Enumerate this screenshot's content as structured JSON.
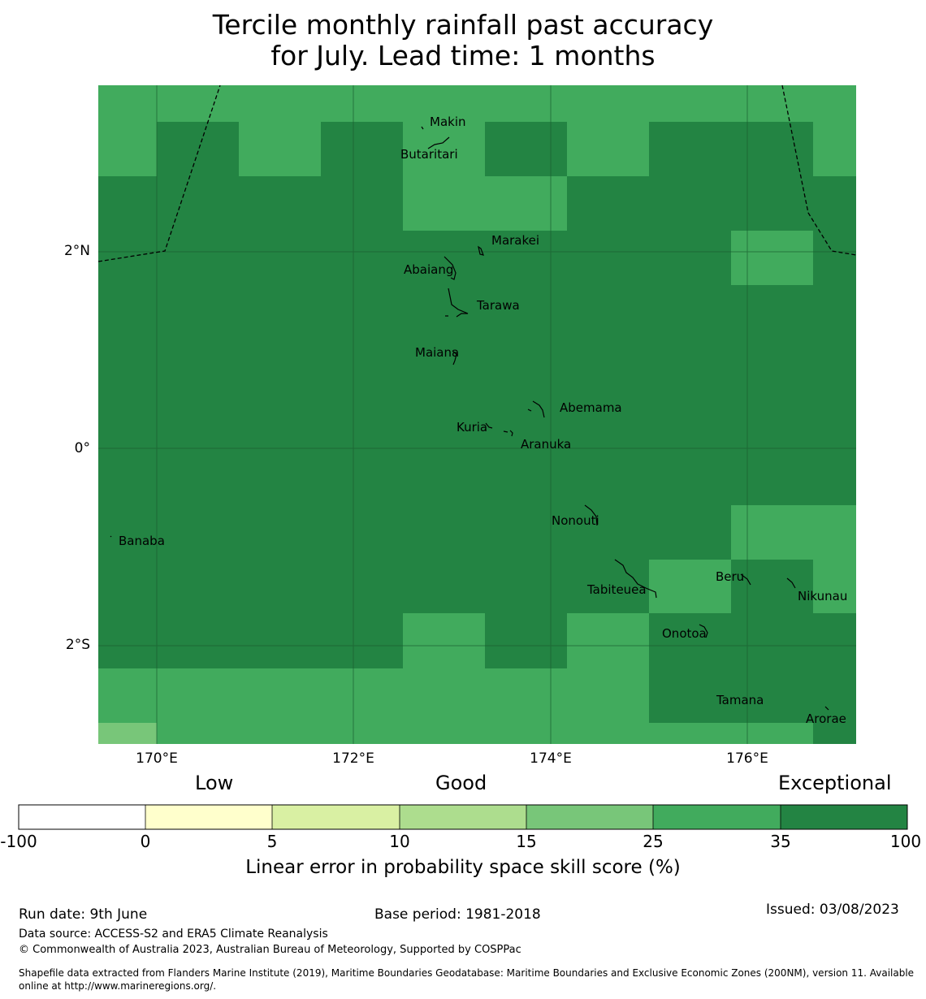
{
  "title": {
    "line1": "Tercile monthly rainfall past accuracy",
    "line2": "for July. Lead time: 1 months"
  },
  "map": {
    "axes": {
      "x_ticks": [
        "170°E",
        "172°E",
        "174°E",
        "176°E"
      ],
      "y_ticks": [
        "2°N",
        "0°",
        "2°S"
      ]
    },
    "islands": [
      {
        "name": "Makin"
      },
      {
        "name": "Butaritari"
      },
      {
        "name": "Marakei"
      },
      {
        "name": "Abaiang"
      },
      {
        "name": "Tarawa"
      },
      {
        "name": "Maiana"
      },
      {
        "name": "Abemama"
      },
      {
        "name": "Kuria"
      },
      {
        "name": "Aranuka"
      },
      {
        "name": "Banaba"
      },
      {
        "name": "Nonouti"
      },
      {
        "name": "Tabiteuea"
      },
      {
        "name": "Beru"
      },
      {
        "name": "Nikunau"
      },
      {
        "name": "Onotoa"
      },
      {
        "name": "Tamana"
      },
      {
        "name": "Arorae"
      }
    ],
    "colors": {
      "class_25_35": "#41ab5d",
      "class_35_100": "#238443",
      "class_15_25": "#78c679"
    }
  },
  "colorbar": {
    "category_labels": {
      "low": "Low",
      "good": "Good",
      "exceptional": "Exceptional"
    },
    "ticks": [
      "-100",
      "0",
      "5",
      "10",
      "15",
      "25",
      "35",
      "100"
    ],
    "colors": [
      "#ffffff",
      "#ffffcc",
      "#d9f0a3",
      "#addd8e",
      "#78c679",
      "#41ab5d",
      "#238443"
    ],
    "label": "Linear error in probability space skill score (%)"
  },
  "footer": {
    "run_date": "Run date: 9th June",
    "base_period": "Base period: 1981-2018",
    "issued": "Issued: 03/08/2023",
    "data_source": "Data source: ACCESS-S2 and ERA5 Climate Reanalysis",
    "copyright": "© Commonwealth of Australia 2023, Australian Bureau of Meteorology, Supported by COSPPac",
    "shapefile_line1": "Shapefile data extracted from Flanders Marine Institute (2019), Maritime Boundaries Geodatabase: Maritime Boundaries and Exclusive Economic Zones (200NM), version 11. Available",
    "shapefile_line2": "online at http://www.marineregions.org/."
  }
}
